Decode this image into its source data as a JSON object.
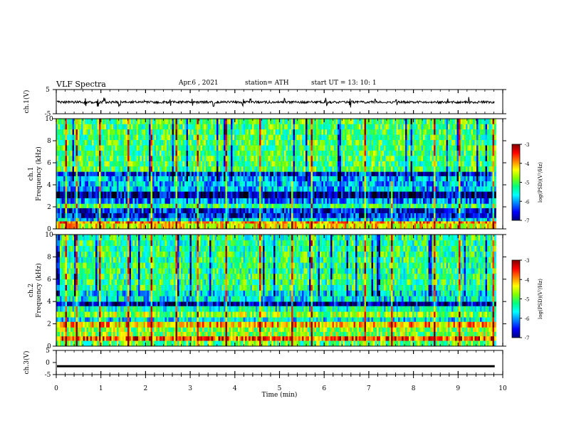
{
  "header": {
    "title": "VLF Spectra",
    "date": "Apr.6  , 2021",
    "station": "station= ATH",
    "start": "start  UT =   13: 10: 1"
  },
  "chart_data": [
    {
      "type": "line",
      "panel": "ch1-waveform",
      "ylabel": "ch.1(V)",
      "ylim": [
        -5,
        5
      ],
      "yticks": [
        "5",
        "-5"
      ],
      "xlim": [
        0,
        10
      ],
      "x_extent_min": [
        0,
        9.82
      ],
      "baseline_v": -0.2,
      "noise_amplitude_v": 0.5,
      "spike_times_min": [
        0.65,
        0.93,
        1.08,
        1.42,
        1.98,
        2.55,
        3.06,
        3.52,
        4.18,
        4.35,
        5.12,
        6.05,
        6.58,
        7.14,
        7.62,
        8.75,
        9.25
      ]
    },
    {
      "type": "heatmap",
      "panel": "ch1-spectrogram",
      "ylabel": "ch.1",
      "ylabel2": "Frequency (kHz)",
      "ylim": [
        0,
        10
      ],
      "yticks": [
        "0",
        "2",
        "4",
        "6",
        "8",
        "10"
      ],
      "xlim": [
        0,
        10
      ],
      "x_extent_min": [
        0,
        9.82
      ],
      "colorbar": {
        "label": "log(PSD)(V²/Hz)",
        "range": [
          -7,
          -3
        ],
        "ticks": [
          "-3",
          "-4",
          "-5",
          "-6",
          "-7"
        ]
      },
      "bands_khz": [
        [
          0.0,
          0.5,
          -4.2
        ],
        [
          0.5,
          0.7,
          -3.9
        ],
        [
          0.7,
          1.0,
          -5.5
        ],
        [
          1.0,
          1.9,
          -6.2
        ],
        [
          1.9,
          2.3,
          -5.0
        ],
        [
          2.3,
          2.8,
          -5.8
        ],
        [
          2.8,
          3.4,
          -6.5
        ],
        [
          3.4,
          4.8,
          -5.6
        ],
        [
          4.8,
          5.2,
          -6.2
        ],
        [
          5.2,
          10.0,
          -4.9
        ]
      ],
      "impulse_times_min": [
        0.2,
        0.45,
        0.95,
        1.3,
        1.58,
        2.1,
        2.68,
        3.15,
        3.78,
        4.05,
        4.55,
        5.25,
        5.7,
        6.0,
        6.4,
        6.9,
        7.5,
        7.95,
        8.45,
        9.0,
        9.55,
        9.76
      ]
    },
    {
      "type": "heatmap",
      "panel": "ch2-spectrogram",
      "ylabel": "ch.2",
      "ylabel2": "Frequency (kHz)",
      "ylim": [
        0,
        10
      ],
      "yticks": [
        "0",
        "2",
        "4",
        "6",
        "8",
        "10"
      ],
      "xlim": [
        0,
        10
      ],
      "x_extent_min": [
        0,
        9.82
      ],
      "colorbar": {
        "label": "log(PSD)(V²/Hz)",
        "range": [
          -7,
          -3
        ],
        "ticks": [
          "-3",
          "-4",
          "-5",
          "-6",
          "-7"
        ]
      },
      "bands_khz": [
        [
          0.0,
          0.5,
          -4.8
        ],
        [
          0.5,
          0.9,
          -3.6
        ],
        [
          0.9,
          1.7,
          -4.6
        ],
        [
          1.7,
          2.2,
          -4.0
        ],
        [
          2.2,
          2.6,
          -5.4
        ],
        [
          2.6,
          3.1,
          -4.6
        ],
        [
          3.1,
          3.6,
          -5.2
        ],
        [
          3.6,
          4.0,
          -6.4
        ],
        [
          4.0,
          5.0,
          -5.4
        ],
        [
          5.0,
          10.0,
          -5.0
        ]
      ],
      "impulse_times_min": [
        0.2,
        0.45,
        0.95,
        1.3,
        1.58,
        2.1,
        2.68,
        3.15,
        3.78,
        4.05,
        4.55,
        5.25,
        5.7,
        6.0,
        6.4,
        6.9,
        7.5,
        7.95,
        8.45,
        9.0,
        9.55,
        9.76
      ]
    },
    {
      "type": "line",
      "panel": "ch3-waveform",
      "ylabel": "ch.3(V)",
      "ylim": [
        -5,
        5
      ],
      "yticks": [
        "5",
        "0",
        "-5"
      ],
      "xlim": [
        0,
        10
      ],
      "x_extent_min": [
        0,
        9.82
      ],
      "baseline_v": -1.5,
      "noise_amplitude_v": 0.4,
      "xlabel": "Time  (min)",
      "xticks": [
        "0",
        "1",
        "2",
        "3",
        "4",
        "5",
        "6",
        "7",
        "8",
        "9",
        "10"
      ]
    }
  ],
  "colors": {
    "colormap": [
      "#000000",
      "#000080",
      "#0000ff",
      "#0080ff",
      "#00ffff",
      "#00ff80",
      "#80ff00",
      "#ffff00",
      "#ff8000",
      "#ff0000",
      "#800000"
    ],
    "line": "#000000"
  }
}
